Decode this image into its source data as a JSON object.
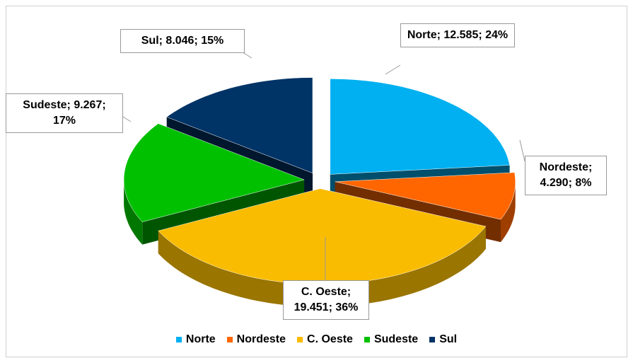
{
  "chart_data": {
    "type": "pie",
    "categories": [
      "Norte",
      "Nordeste",
      "C. Oeste",
      "Sudeste",
      "Sul"
    ],
    "values": [
      12585,
      4290,
      19451,
      9267,
      8046
    ],
    "value_labels": [
      "Norte; 12.585; 24%",
      "Nordeste; 4.290; 8%",
      "C. Oeste; 19.451; 36%",
      "Sudeste; 9.267; 17%",
      "Sul; 8.046; 15%"
    ],
    "colors": [
      "#00b0f0",
      "#ff6600",
      "#f9bc00",
      "#00c000",
      "#003366"
    ],
    "legend": "bottom"
  }
}
